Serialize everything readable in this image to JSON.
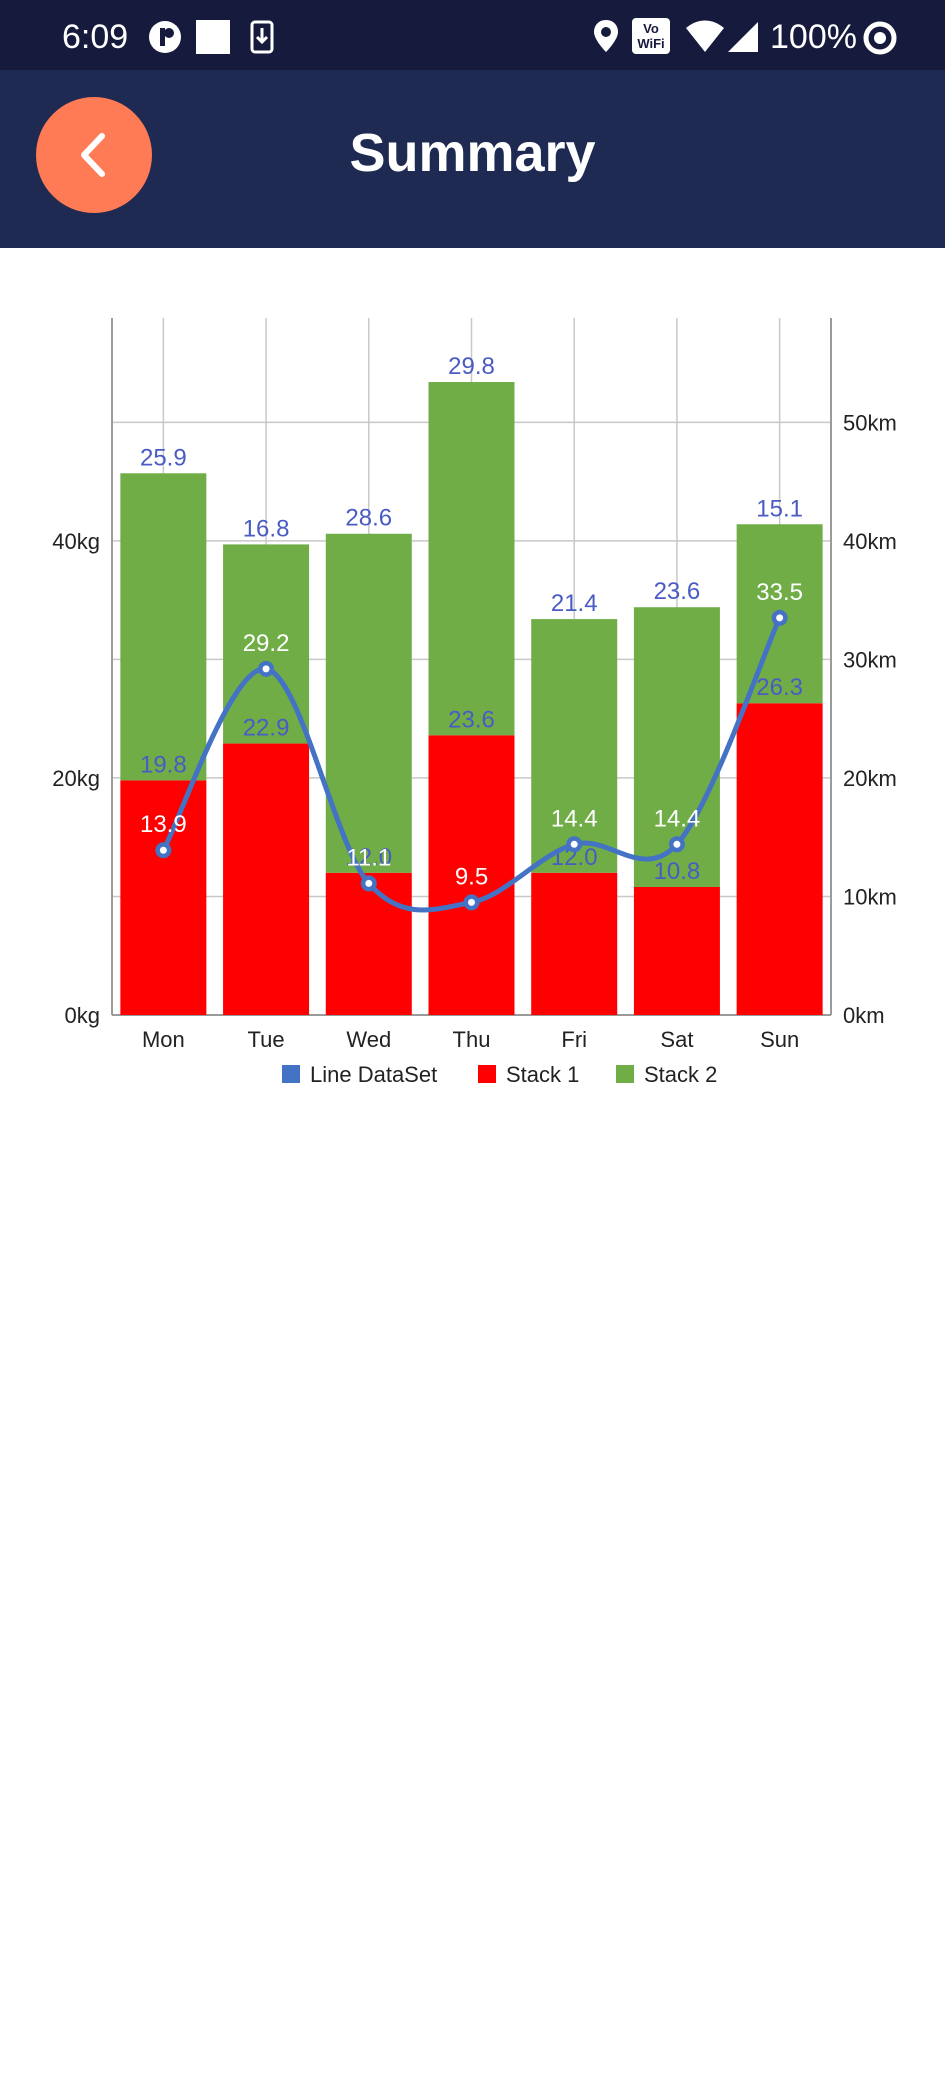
{
  "status_bar": {
    "time": "6:09",
    "battery": "100%",
    "wifi_badge_top": "Vo",
    "wifi_badge_bottom": "WiFi"
  },
  "header": {
    "title": "Summary",
    "back_icon": "chevron-left-icon",
    "back_color": "#ff7b55",
    "background": "#1f2a52"
  },
  "chart_data": {
    "type": "bar",
    "stacked": true,
    "categories": [
      "Mon",
      "Tue",
      "Wed",
      "Thu",
      "Fri",
      "Sat",
      "Sun"
    ],
    "left_axis": {
      "ticks": [
        "0kg",
        "20kg",
        "40kg"
      ],
      "tick_values": [
        0,
        20,
        40
      ],
      "range": [
        0,
        58.8
      ]
    },
    "right_axis": {
      "ticks": [
        "0km",
        "10km",
        "20km",
        "30km",
        "40km",
        "50km"
      ],
      "tick_values": [
        0,
        10,
        20,
        30,
        40,
        50
      ],
      "range": [
        0,
        58.8
      ]
    },
    "grid": true,
    "legend_position": "bottom-center",
    "series": [
      {
        "name": "Stack 1",
        "kind": "bar",
        "color": "#ff0000",
        "values": [
          19.8,
          22.9,
          12.0,
          23.6,
          12.0,
          10.8,
          26.3
        ],
        "labels": [
          "19.8",
          "22.9",
          "12.0",
          "23.6",
          "12.0",
          "10.8",
          "26.3"
        ]
      },
      {
        "name": "Stack 2",
        "kind": "bar",
        "color": "#70ad47",
        "values": [
          25.9,
          16.8,
          28.6,
          29.8,
          21.4,
          23.6,
          15.1
        ],
        "labels": [
          "25.9",
          "16.8",
          "28.6",
          "29.8",
          "21.4",
          "23.6",
          "15.1"
        ]
      },
      {
        "name": "Line DataSet",
        "kind": "line",
        "color": "#4472c4",
        "values": [
          13.9,
          29.2,
          11.1,
          9.5,
          14.4,
          14.4,
          33.5
        ],
        "labels": [
          "13.9",
          "29.2",
          "11.1",
          "9.5",
          "14.4",
          "14.4",
          "33.5"
        ]
      }
    ]
  }
}
